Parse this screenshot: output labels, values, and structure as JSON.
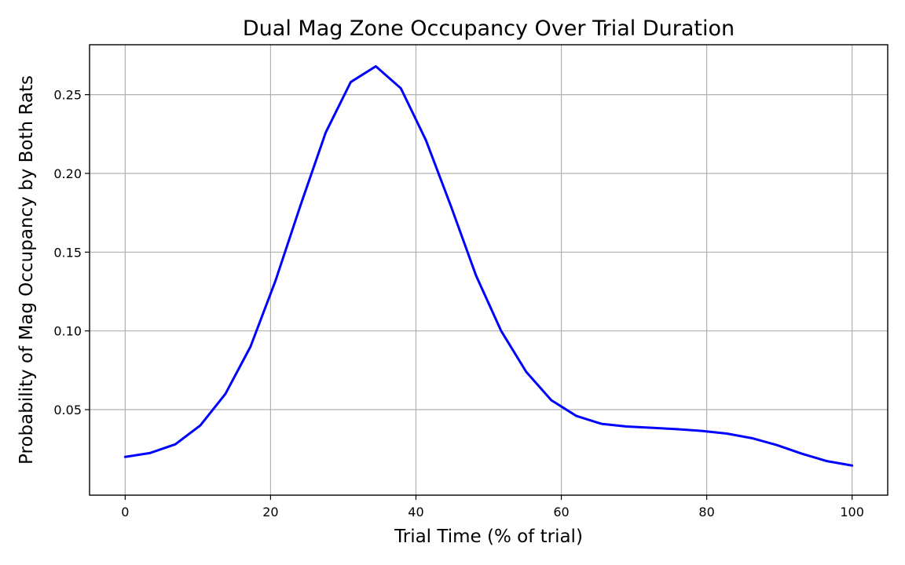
{
  "chart_data": {
    "type": "line",
    "title": "Dual Mag Zone Occupancy Over Trial Duration",
    "xlabel": "Trial Time (% of trial)",
    "ylabel": "Probability of Mag Occupancy by Both Rats",
    "xlim": [
      -4.9,
      104.9
    ],
    "ylim": [
      -0.0043,
      0.2817
    ],
    "grid": true,
    "xticks": [
      0,
      20,
      40,
      60,
      80,
      100
    ],
    "yticks": [
      0.05,
      0.1,
      0.15,
      0.2,
      0.25
    ],
    "series": [
      {
        "color": "#0000ff",
        "x": [
          0,
          3.45,
          6.9,
          10.34,
          13.79,
          17.24,
          20.69,
          24.14,
          27.59,
          31.03,
          34.48,
          37.93,
          41.38,
          44.83,
          48.28,
          51.72,
          55.17,
          58.62,
          62.07,
          65.52,
          68.97,
          72.41,
          75.86,
          79.31,
          82.76,
          86.21,
          89.66,
          93.1,
          96.55,
          100
        ],
        "y": [
          0.02,
          0.0225,
          0.028,
          0.04,
          0.06,
          0.09,
          0.132,
          0.18,
          0.226,
          0.258,
          0.268,
          0.254,
          0.221,
          0.179,
          0.135,
          0.1,
          0.074,
          0.056,
          0.046,
          0.041,
          0.0393,
          0.0385,
          0.0376,
          0.0365,
          0.0348,
          0.0319,
          0.0275,
          0.022,
          0.0173,
          0.0145
        ]
      }
    ]
  }
}
